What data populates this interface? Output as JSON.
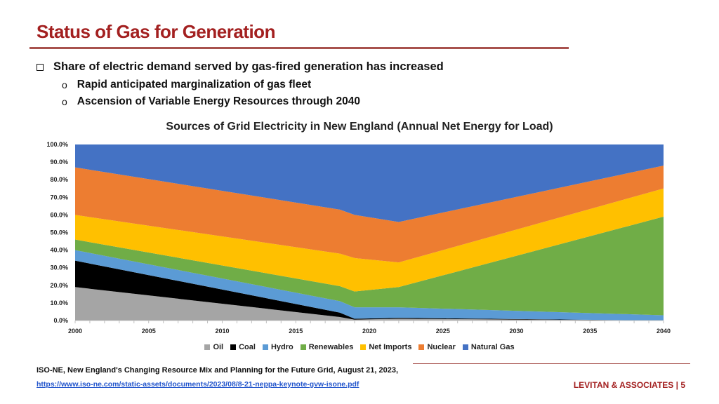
{
  "slide": {
    "title": "Status of Gas for Generation",
    "bullet": "Share of electric demand served by gas-fired generation has increased",
    "sub_bullets": [
      "Rapid anticipated marginalization of gas fleet",
      "Ascension of Variable Energy Resources through 2040"
    ],
    "sub_marker": "o",
    "source_citation": "ISO-NE, New England's Changing Resource Mix and Planning for the Future Grid, August 21, 2023,",
    "source_link": "https://www.iso-ne.com/static-assets/documents/2023/08/8-21-neppa-keynote-gvw-isone.pdf",
    "footer": "LEVITAN & ASSOCIATES | 5"
  },
  "colors": {
    "title": "#a32020",
    "Oil": "#a5a5a5",
    "Coal": "#000000",
    "Hydro": "#5b9bd5",
    "Renewables": "#70ad47",
    "Net Imports": "#ffc000",
    "Nuclear": "#ed7d31",
    "Natural Gas": "#4472c4"
  },
  "chart_data": {
    "type": "area",
    "title": "Sources of Grid Electricity in New England (Annual Net Energy for Load)",
    "stacked": true,
    "xlim": [
      2000,
      2040
    ],
    "ylim": [
      0,
      1
    ],
    "x_ticks": [
      "2000",
      "2005",
      "2010",
      "2015",
      "2020",
      "2025",
      "2030",
      "2035",
      "2040"
    ],
    "y_ticks": [
      "0.0%",
      "10.0%",
      "20.0%",
      "30.0%",
      "40.0%",
      "50.0%",
      "60.0%",
      "70.0%",
      "80.0%",
      "90.0%",
      "100.0%"
    ],
    "x": [
      2000,
      2018,
      2019,
      2022,
      2040
    ],
    "series": [
      {
        "name": "Oil",
        "values": [
          0.19,
          0.02,
          0.005,
          0.01,
          0.0
        ]
      },
      {
        "name": "Coal",
        "values": [
          0.15,
          0.025,
          0.005,
          0.005,
          0.0
        ]
      },
      {
        "name": "Hydro",
        "values": [
          0.06,
          0.065,
          0.065,
          0.06,
          0.03
        ]
      },
      {
        "name": "Renewables",
        "values": [
          0.06,
          0.085,
          0.09,
          0.115,
          0.56
        ]
      },
      {
        "name": "Net Imports",
        "values": [
          0.14,
          0.185,
          0.19,
          0.14,
          0.16
        ]
      },
      {
        "name": "Nuclear",
        "values": [
          0.27,
          0.25,
          0.245,
          0.23,
          0.13
        ]
      },
      {
        "name": "Natural Gas",
        "values": [
          0.13,
          0.37,
          0.4,
          0.44,
          0.12
        ]
      }
    ],
    "legend": [
      "Oil",
      "Coal",
      "Hydro",
      "Renewables",
      "Net Imports",
      "Nuclear",
      "Natural Gas"
    ],
    "legend_position": "bottom"
  }
}
